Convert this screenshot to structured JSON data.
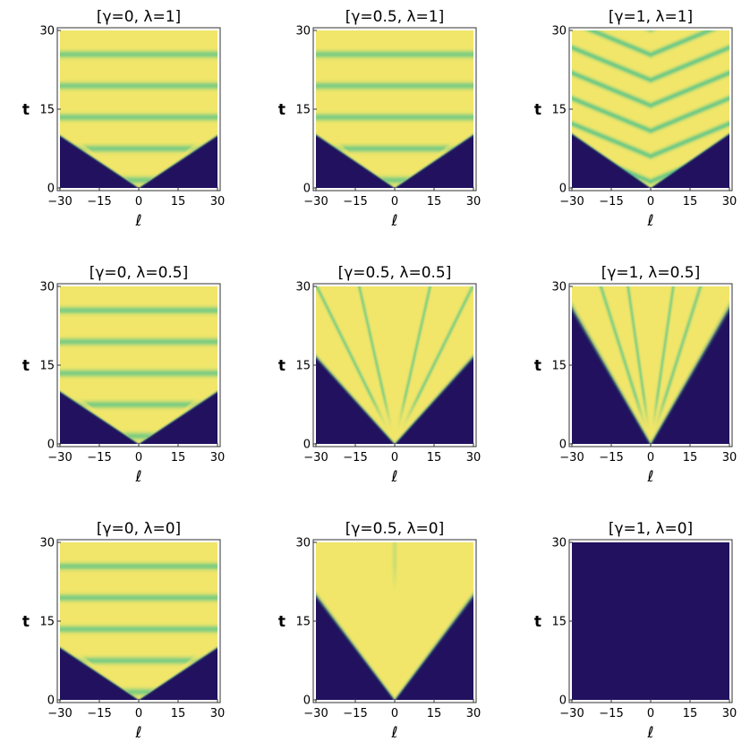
{
  "chart_data": [
    {
      "type": "heatmap",
      "title": "[γ=0, λ=1]",
      "xlabel": "ℓ",
      "ylabel": "t",
      "xlim": [
        -30,
        30
      ],
      "ylim": [
        0,
        30
      ],
      "xticks": [
        "-30",
        "-15",
        "0",
        "15",
        "30"
      ],
      "yticks": [
        "0",
        "15",
        "30"
      ],
      "front_speed": 3.0,
      "pattern": "horizontal-bands"
    },
    {
      "type": "heatmap",
      "title": "[γ=0.5, λ=1]",
      "xlabel": "ℓ",
      "ylabel": "t",
      "xlim": [
        -30,
        30
      ],
      "ylim": [
        0,
        30
      ],
      "xticks": [
        "-30",
        "-15",
        "0",
        "15",
        "30"
      ],
      "yticks": [
        "0",
        "15",
        "30"
      ],
      "front_speed": 2.95,
      "pattern": "horizontal-bands"
    },
    {
      "type": "heatmap",
      "title": "[γ=1, λ=1]",
      "xlabel": "ℓ",
      "ylabel": "t",
      "xlim": [
        -30,
        30
      ],
      "ylim": [
        0,
        30
      ],
      "xticks": [
        "-30",
        "-15",
        "0",
        "15",
        "30"
      ],
      "yticks": [
        "0",
        "15",
        "30"
      ],
      "front_speed": 2.9,
      "pattern": "v-shaped-bands"
    },
    {
      "type": "heatmap",
      "title": "[γ=0, λ=0.5]",
      "xlabel": "ℓ",
      "ylabel": "t",
      "xlim": [
        -30,
        30
      ],
      "ylim": [
        0,
        30
      ],
      "xticks": [
        "-30",
        "-15",
        "0",
        "15",
        "30"
      ],
      "yticks": [
        "0",
        "15",
        "30"
      ],
      "front_speed": 3.0,
      "pattern": "horizontal-bands"
    },
    {
      "type": "heatmap",
      "title": "[γ=0.5, λ=0.5]",
      "xlabel": "ℓ",
      "ylabel": "t",
      "xlim": [
        -30,
        30
      ],
      "ylim": [
        0,
        30
      ],
      "xticks": [
        "-30",
        "-15",
        "0",
        "15",
        "30"
      ],
      "yticks": [
        "0",
        "15",
        "30"
      ],
      "front_speed": 1.8,
      "pattern": "inner-rays"
    },
    {
      "type": "heatmap",
      "title": "[γ=1, λ=0.5]",
      "xlabel": "ℓ",
      "ylabel": "t",
      "xlim": [
        -30,
        30
      ],
      "ylim": [
        0,
        30
      ],
      "xticks": [
        "-30",
        "-15",
        "0",
        "15",
        "30"
      ],
      "yticks": [
        "0",
        "15",
        "30"
      ],
      "front_speed": 1.15,
      "pattern": "inner-rays"
    },
    {
      "type": "heatmap",
      "title": "[γ=0, λ=0]",
      "xlabel": "ℓ",
      "ylabel": "t",
      "xlim": [
        -30,
        30
      ],
      "ylim": [
        0,
        30
      ],
      "xticks": [
        "-30",
        "-15",
        "0",
        "15",
        "30"
      ],
      "yticks": [
        "0",
        "15",
        "30"
      ],
      "front_speed": 3.0,
      "pattern": "horizontal-bands"
    },
    {
      "type": "heatmap",
      "title": "[γ=0.5, λ=0]",
      "xlabel": "ℓ",
      "ylabel": "t",
      "xlim": [
        -30,
        30
      ],
      "ylim": [
        0,
        30
      ],
      "xticks": [
        "-30",
        "-15",
        "0",
        "15",
        "30"
      ],
      "yticks": [
        "0",
        "15",
        "30"
      ],
      "front_speed": 1.5,
      "pattern": "smooth"
    },
    {
      "type": "heatmap",
      "title": "[γ=1, λ=0]",
      "xlabel": "ℓ",
      "ylabel": "t",
      "xlim": [
        -30,
        30
      ],
      "ylim": [
        0,
        30
      ],
      "xticks": [
        "-30",
        "-15",
        "0",
        "15",
        "30"
      ],
      "yticks": [
        "0",
        "15",
        "30"
      ],
      "front_speed": 0,
      "pattern": "empty"
    }
  ],
  "colors": {
    "background": "#21115e",
    "inside": "#f1e66a",
    "band": "#5ac58a",
    "edge": "#2a8c8a"
  }
}
